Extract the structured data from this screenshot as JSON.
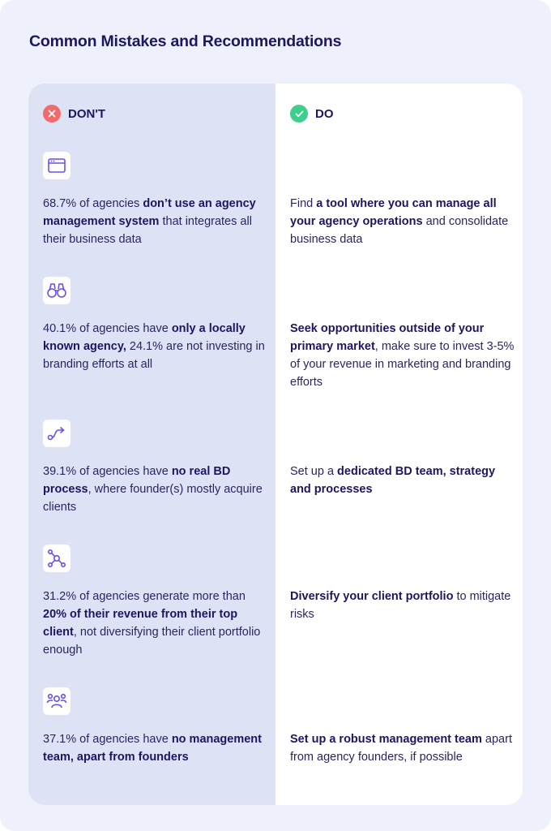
{
  "title": "Common Mistakes and Recommendations",
  "columns": {
    "dont_label": "DON'T",
    "do_label": "DO"
  },
  "colors": {
    "accent": "#6b4ef0",
    "dont_bg": "#dde2f5",
    "dont_badge": "#f26b6b",
    "do_badge": "#3ccf8e",
    "heading": "#1d1660"
  },
  "rows": [
    {
      "icon": "browser-window-icon",
      "dont": {
        "p1": "68.7% of agencies ",
        "b1": "don’t use an agency management system",
        "p2": " that integrates all their business data",
        "b2": "",
        "p3": ""
      },
      "do": {
        "p1": "Find ",
        "b1": "a tool where you can manage all your agency operations",
        "p2": " and consolidate business data"
      }
    },
    {
      "icon": "binoculars-icon",
      "dont": {
        "p1": "40.1% of agencies have ",
        "b1": "only a locally known agency,",
        "p2": " 24.1% are not investing in branding efforts at all",
        "b2": "",
        "p3": ""
      },
      "do": {
        "p1": "",
        "b1": "Seek opportunities outside of your primary market",
        "p2": ", make sure to invest 3-5% of your revenue in marketing and branding efforts"
      }
    },
    {
      "icon": "route-arrow-icon",
      "dont": {
        "p1": "39.1% of agencies have ",
        "b1": "no real BD process",
        "p2": ", where founder(s) mostly acquire clients",
        "b2": "",
        "p3": ""
      },
      "do": {
        "p1": "Set up a ",
        "b1": "dedicated BD team, strategy and processes",
        "p2": ""
      }
    },
    {
      "icon": "network-nodes-icon",
      "dont": {
        "p1": "31.2% of agencies generate more than ",
        "b1": "20% of their revenue from their top client",
        "p2": ", not diversifying their client portfolio enough",
        "b2": "",
        "p3": ""
      },
      "do": {
        "p1": "",
        "b1": "Diversify your client portfolio",
        "p2": " to mitigate risks"
      }
    },
    {
      "icon": "team-group-icon",
      "dont": {
        "p1": "37.1% of agencies have ",
        "b1": "no management team, apart from founders",
        "p2": "",
        "b2": "",
        "p3": ""
      },
      "do": {
        "p1": "",
        "b1": "Set up a robust management team",
        "p2": " apart from agency founders, if possible"
      }
    }
  ]
}
